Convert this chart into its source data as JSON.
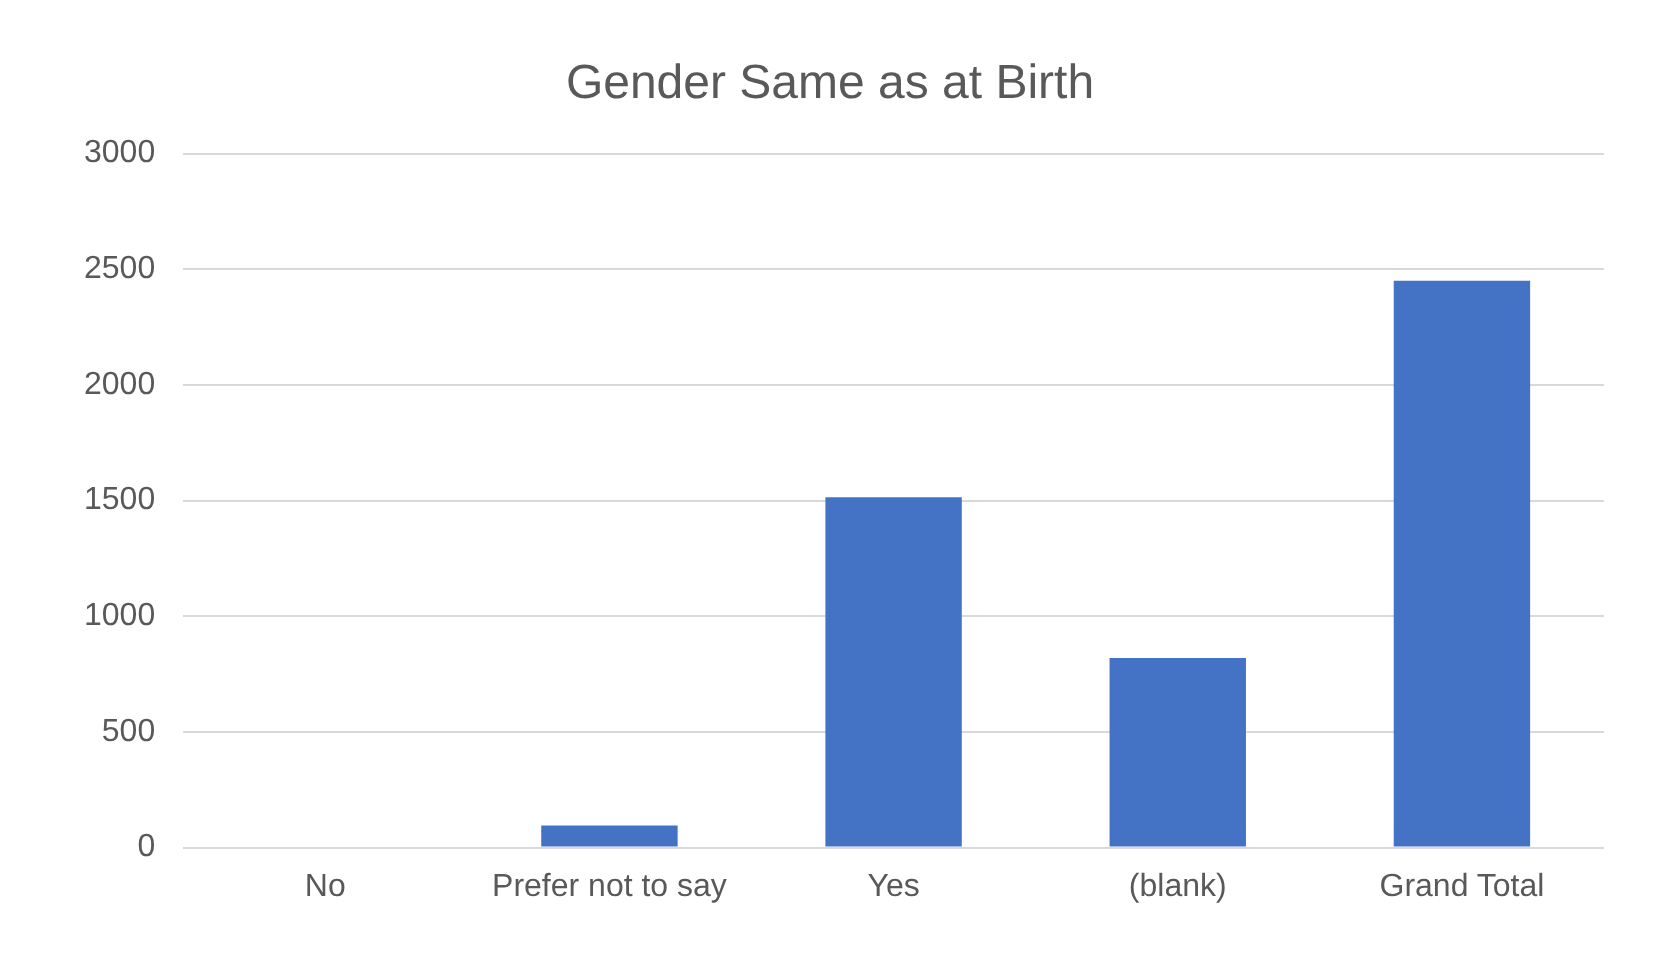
{
  "chart_data": {
    "type": "bar",
    "title": "Gender Same as at Birth",
    "categories": [
      "No",
      "Prefer not to say",
      "Yes",
      "(blank)",
      "Grand Total"
    ],
    "values": [
      0,
      95,
      1515,
      820,
      2450
    ],
    "color": "#4472c4",
    "ylim": [
      0,
      3000
    ],
    "yticks": [
      0,
      500,
      1000,
      1500,
      2000,
      2500,
      3000
    ],
    "grid": "y",
    "legend": false
  }
}
